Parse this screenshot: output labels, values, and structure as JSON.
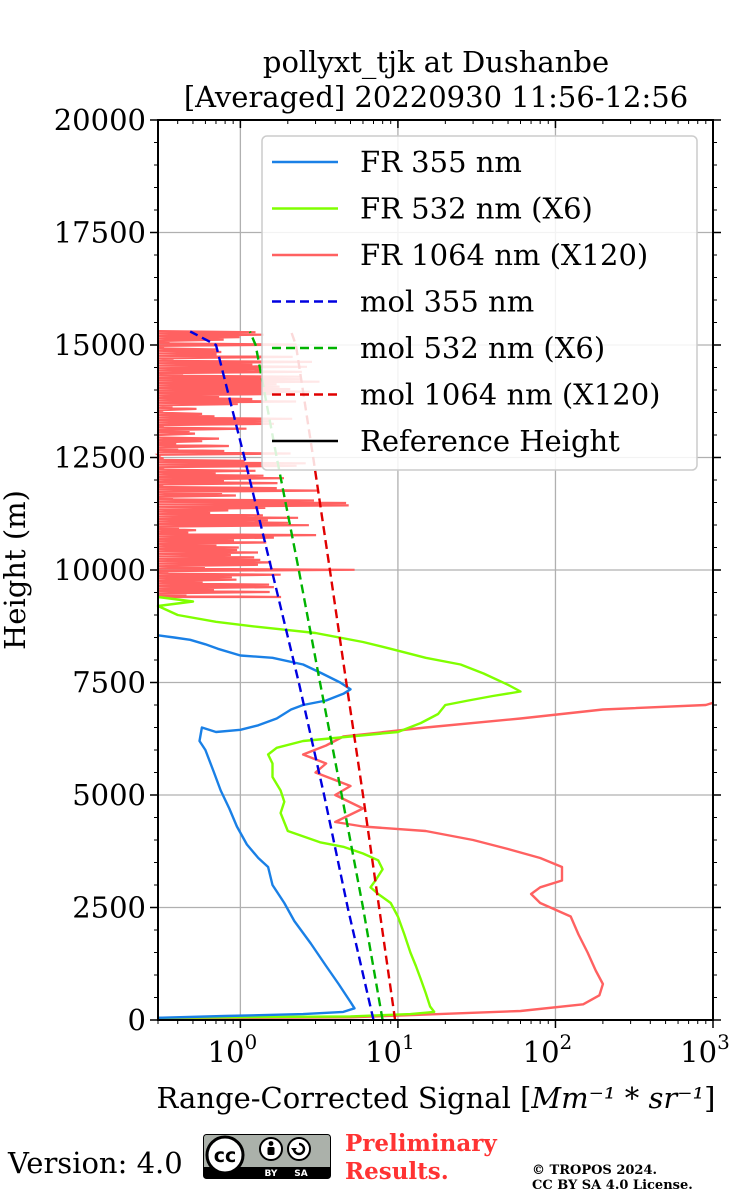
{
  "chart_data": {
    "type": "line",
    "title": [
      "pollyxt_tjk at Dushanbe",
      "[Averaged] 20220930 11:56-12:56"
    ],
    "xlabel": "Range-Corrected Signal [",
    "xlabel_unit": "Mm⁻¹ * sr⁻¹",
    "xlabel_end": "]",
    "ylabel": "Height (m)",
    "xscale": "log",
    "xlim": [
      0.3,
      1000
    ],
    "ylim": [
      0,
      20000
    ],
    "grid": true,
    "legend_position": "top-right",
    "x_ticks": [
      {
        "value": 1,
        "base": "10",
        "exp": "0"
      },
      {
        "value": 10,
        "base": "10",
        "exp": "1"
      },
      {
        "value": 100,
        "base": "10",
        "exp": "2"
      },
      {
        "value": 1000,
        "base": "10",
        "exp": "3"
      }
    ],
    "y_ticks": [
      {
        "value": 0,
        "label": "0"
      },
      {
        "value": 2500,
        "label": "2500"
      },
      {
        "value": 5000,
        "label": "5000"
      },
      {
        "value": 7500,
        "label": "7500"
      },
      {
        "value": 10000,
        "label": "10000"
      },
      {
        "value": 12500,
        "label": "12500"
      },
      {
        "value": 15000,
        "label": "15000"
      },
      {
        "value": 17500,
        "label": "17500"
      },
      {
        "value": 20000,
        "label": "20000"
      }
    ],
    "series": [
      {
        "name": "FR 355 nm",
        "color": "#1a80e6",
        "style": "solid",
        "points": [
          [
            0.3,
            50
          ],
          [
            0.8,
            90
          ],
          [
            2.5,
            130
          ],
          [
            4.5,
            180
          ],
          [
            5.3,
            260
          ],
          [
            5.0,
            400
          ],
          [
            4.2,
            800
          ],
          [
            3.5,
            1200
          ],
          [
            2.8,
            1700
          ],
          [
            2.2,
            2200
          ],
          [
            1.9,
            2600
          ],
          [
            1.6,
            3000
          ],
          [
            1.5,
            3400
          ],
          [
            1.3,
            3600
          ],
          [
            1.1,
            3900
          ],
          [
            0.95,
            4300
          ],
          [
            0.85,
            4700
          ],
          [
            0.75,
            5100
          ],
          [
            0.68,
            5500
          ],
          [
            0.6,
            6000
          ],
          [
            0.55,
            6200
          ],
          [
            0.57,
            6500
          ],
          [
            0.7,
            6400
          ],
          [
            1.0,
            6450
          ],
          [
            1.3,
            6550
          ],
          [
            1.7,
            6700
          ],
          [
            2.1,
            6900
          ],
          [
            2.5,
            7000
          ],
          [
            3.5,
            7100
          ],
          [
            4.5,
            7250
          ],
          [
            5.0,
            7350
          ],
          [
            4.3,
            7500
          ],
          [
            3.3,
            7700
          ],
          [
            2.5,
            7900
          ],
          [
            1.6,
            8050
          ],
          [
            1.0,
            8100
          ],
          [
            0.72,
            8250
          ],
          [
            0.6,
            8350
          ],
          [
            0.48,
            8450
          ],
          [
            0.38,
            8500
          ],
          [
            0.3,
            8550
          ]
        ]
      },
      {
        "name": "FR 532 nm (X6)",
        "color": "#80ff00",
        "style": "solid",
        "points": [
          [
            0.3,
            50
          ],
          [
            5.0,
            80
          ],
          [
            12,
            130
          ],
          [
            17,
            180
          ],
          [
            16,
            300
          ],
          [
            15,
            600
          ],
          [
            14,
            900
          ],
          [
            13,
            1200
          ],
          [
            12,
            1500
          ],
          [
            11,
            1900
          ],
          [
            10,
            2300
          ],
          [
            9,
            2600
          ],
          [
            7.5,
            2800
          ],
          [
            6.7,
            2950
          ],
          [
            7.2,
            3100
          ],
          [
            8.0,
            3350
          ],
          [
            7.5,
            3550
          ],
          [
            6.0,
            3700
          ],
          [
            4.5,
            3850
          ],
          [
            3.2,
            3950
          ],
          [
            2.0,
            4200
          ],
          [
            1.8,
            4600
          ],
          [
            1.9,
            4850
          ],
          [
            1.8,
            5100
          ],
          [
            1.6,
            5400
          ],
          [
            1.6,
            5700
          ],
          [
            1.5,
            5900
          ],
          [
            1.7,
            6050
          ],
          [
            2.5,
            6200
          ],
          [
            5,
            6300
          ],
          [
            10,
            6400
          ],
          [
            14,
            6600
          ],
          [
            18,
            6800
          ],
          [
            20,
            7000
          ],
          [
            28,
            7100
          ],
          [
            40,
            7200
          ],
          [
            60,
            7300
          ],
          [
            50,
            7450
          ],
          [
            35,
            7700
          ],
          [
            25,
            7900
          ],
          [
            15,
            8050
          ],
          [
            9,
            8250
          ],
          [
            6,
            8400
          ],
          [
            3,
            8600
          ],
          [
            1.2,
            8750
          ],
          [
            0.7,
            8850
          ],
          [
            0.4,
            9000
          ],
          [
            0.3,
            9200
          ],
          [
            0.5,
            9300
          ],
          [
            0.3,
            9400
          ]
        ]
      },
      {
        "name": "FR 1064 nm (X120)",
        "color": "#ff6161",
        "style": "solid",
        "points": [
          [
            0.3,
            40
          ],
          [
            5,
            60
          ],
          [
            15,
            120
          ],
          [
            60,
            200
          ],
          [
            150,
            350
          ],
          [
            190,
            550
          ],
          [
            200,
            800
          ],
          [
            180,
            1100
          ],
          [
            160,
            1500
          ],
          [
            140,
            1900
          ],
          [
            125,
            2300
          ],
          [
            80,
            2600
          ],
          [
            70,
            2800
          ],
          [
            80,
            2950
          ],
          [
            110,
            3100
          ],
          [
            110,
            3400
          ],
          [
            80,
            3600
          ],
          [
            50,
            3800
          ],
          [
            30,
            4000
          ],
          [
            15,
            4200
          ],
          [
            6,
            4300
          ],
          [
            4,
            4400
          ],
          [
            6,
            4700
          ],
          [
            4,
            5000
          ],
          [
            5,
            5200
          ],
          [
            3,
            5500
          ],
          [
            3.5,
            5700
          ],
          [
            2.5,
            5900
          ],
          [
            3.5,
            6100
          ],
          [
            4.5,
            6300
          ],
          [
            15,
            6500
          ],
          [
            60,
            6700
          ],
          [
            200,
            6900
          ],
          [
            900,
            7000
          ],
          [
            1000,
            7050
          ]
        ]
      },
      {
        "name": "mol 355 nm",
        "color": "#0000e0",
        "style": "dashed",
        "points": [
          [
            7.0,
            0
          ],
          [
            4.8,
            2500
          ],
          [
            3.4,
            5000
          ],
          [
            2.35,
            7500
          ],
          [
            1.58,
            10000
          ],
          [
            1.06,
            12500
          ],
          [
            0.7,
            15000
          ],
          [
            0.48,
            15300
          ]
        ]
      },
      {
        "name": "mol 532 nm (X6)",
        "color": "#00b300",
        "style": "dashed",
        "points": [
          [
            8.0,
            0
          ],
          [
            6.0,
            2500
          ],
          [
            4.4,
            5000
          ],
          [
            3.2,
            7500
          ],
          [
            2.35,
            10000
          ],
          [
            1.7,
            12500
          ],
          [
            1.25,
            15000
          ],
          [
            1.15,
            15300
          ]
        ]
      },
      {
        "name": "mol 1064 nm (X120)",
        "color": "#e00000",
        "style": "dashed",
        "points": [
          [
            9.6,
            0
          ],
          [
            7.6,
            2500
          ],
          [
            6.0,
            5000
          ],
          [
            4.7,
            7500
          ],
          [
            3.7,
            10000
          ],
          [
            2.9,
            12500
          ],
          [
            2.25,
            15000
          ],
          [
            2.1,
            15300
          ]
        ]
      },
      {
        "name": "Reference Height",
        "color": "#000000",
        "style": "solid",
        "points": []
      }
    ]
  },
  "footer": {
    "version_label": "Version: 4.0",
    "badge_cc": "cc",
    "badge_by": "BY",
    "badge_sa": "SA",
    "preliminary_line1": "Preliminary",
    "preliminary_line2": "Results.",
    "copyright_line1": "© TROPOS 2024.",
    "copyright_line2": "CC BY SA 4.0 License."
  }
}
